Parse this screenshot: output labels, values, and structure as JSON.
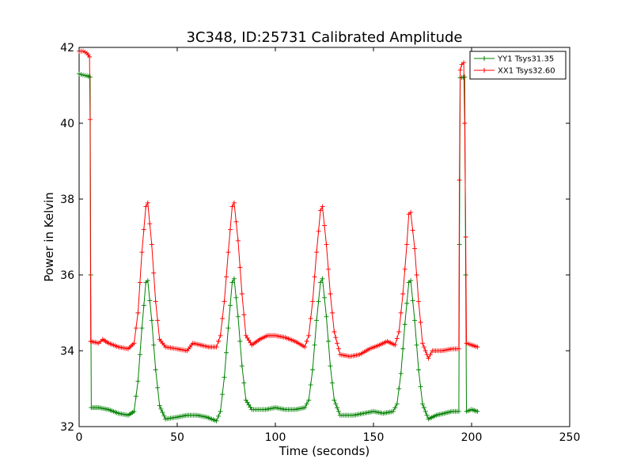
{
  "chart_data": {
    "type": "line",
    "title": "3C348, ID:25731 Calibrated Amplitude",
    "xlabel": "Time (seconds)",
    "ylabel": "Power in Kelvin",
    "xlim": [
      0,
      250
    ],
    "ylim": [
      32,
      42
    ],
    "xticks": [
      "0",
      "50",
      "100",
      "150",
      "200",
      "250"
    ],
    "yticks": [
      "32",
      "34",
      "36",
      "38",
      "40",
      "42"
    ],
    "grid": false,
    "legend_position": "top-right",
    "marker": "plus",
    "series": [
      {
        "name": "YY1 Tsys31.35",
        "color": "#008000",
        "points": [
          [
            0,
            41.3
          ],
          [
            2,
            41.27
          ],
          [
            4,
            41.25
          ],
          [
            5.6,
            41.22
          ],
          [
            5.9,
            36.0
          ],
          [
            6.2,
            32.5
          ],
          [
            10,
            32.5
          ],
          [
            15,
            32.45
          ],
          [
            20,
            32.35
          ],
          [
            25,
            32.3
          ],
          [
            28,
            32.4
          ],
          [
            30,
            33.2
          ],
          [
            32,
            34.6
          ],
          [
            34,
            35.8
          ],
          [
            35,
            35.85
          ],
          [
            37,
            34.8
          ],
          [
            39,
            33.5
          ],
          [
            41,
            32.55
          ],
          [
            44,
            32.2
          ],
          [
            50,
            32.25
          ],
          [
            55,
            32.3
          ],
          [
            60,
            32.3
          ],
          [
            65,
            32.25
          ],
          [
            70,
            32.15
          ],
          [
            72,
            32.4
          ],
          [
            74,
            33.3
          ],
          [
            76,
            34.6
          ],
          [
            78,
            35.8
          ],
          [
            79,
            35.9
          ],
          [
            81,
            34.9
          ],
          [
            83,
            33.6
          ],
          [
            85,
            32.7
          ],
          [
            88,
            32.45
          ],
          [
            95,
            32.45
          ],
          [
            100,
            32.5
          ],
          [
            105,
            32.45
          ],
          [
            110,
            32.45
          ],
          [
            115,
            32.5
          ],
          [
            117,
            32.7
          ],
          [
            119,
            33.5
          ],
          [
            121,
            34.8
          ],
          [
            123,
            35.8
          ],
          [
            124,
            35.9
          ],
          [
            126,
            34.9
          ],
          [
            128,
            33.6
          ],
          [
            130,
            32.7
          ],
          [
            133,
            32.3
          ],
          [
            140,
            32.3
          ],
          [
            145,
            32.35
          ],
          [
            150,
            32.4
          ],
          [
            155,
            32.35
          ],
          [
            160,
            32.4
          ],
          [
            162,
            32.6
          ],
          [
            164,
            33.4
          ],
          [
            166,
            34.7
          ],
          [
            168,
            35.8
          ],
          [
            169,
            35.85
          ],
          [
            171,
            34.8
          ],
          [
            173,
            33.5
          ],
          [
            175,
            32.6
          ],
          [
            178,
            32.2
          ],
          [
            182,
            32.3
          ],
          [
            186,
            32.35
          ],
          [
            190,
            32.4
          ],
          [
            193.5,
            32.4
          ],
          [
            193.8,
            36.8
          ],
          [
            194.2,
            41.2
          ],
          [
            196.5,
            41.22
          ],
          [
            197,
            36.0
          ],
          [
            197.4,
            32.4
          ],
          [
            200,
            32.45
          ],
          [
            203,
            32.4
          ]
        ]
      },
      {
        "name": "XX1 Tsys32.60",
        "color": "#ff0000",
        "points": [
          [
            0,
            41.9
          ],
          [
            2,
            41.9
          ],
          [
            4,
            41.85
          ],
          [
            5.3,
            41.75
          ],
          [
            5.6,
            40.1
          ],
          [
            5.9,
            34.25
          ],
          [
            10,
            34.2
          ],
          [
            12,
            34.3
          ],
          [
            15,
            34.2
          ],
          [
            20,
            34.1
          ],
          [
            25,
            34.05
          ],
          [
            28,
            34.2
          ],
          [
            30,
            35.0
          ],
          [
            32,
            36.6
          ],
          [
            34,
            37.8
          ],
          [
            35,
            37.9
          ],
          [
            37,
            36.8
          ],
          [
            39,
            35.3
          ],
          [
            41,
            34.3
          ],
          [
            44,
            34.1
          ],
          [
            50,
            34.05
          ],
          [
            55,
            34.0
          ],
          [
            58,
            34.2
          ],
          [
            62,
            34.15
          ],
          [
            66,
            34.1
          ],
          [
            70,
            34.1
          ],
          [
            72,
            34.4
          ],
          [
            74,
            35.3
          ],
          [
            76,
            36.6
          ],
          [
            78,
            37.8
          ],
          [
            79,
            37.9
          ],
          [
            81,
            36.9
          ],
          [
            83,
            35.5
          ],
          [
            85,
            34.4
          ],
          [
            88,
            34.15
          ],
          [
            92,
            34.3
          ],
          [
            96,
            34.4
          ],
          [
            100,
            34.4
          ],
          [
            105,
            34.35
          ],
          [
            110,
            34.25
          ],
          [
            115,
            34.1
          ],
          [
            117,
            34.4
          ],
          [
            119,
            35.3
          ],
          [
            121,
            36.6
          ],
          [
            123,
            37.7
          ],
          [
            124,
            37.8
          ],
          [
            126,
            36.8
          ],
          [
            128,
            35.5
          ],
          [
            130,
            34.5
          ],
          [
            133,
            33.9
          ],
          [
            138,
            33.85
          ],
          [
            143,
            33.9
          ],
          [
            148,
            34.05
          ],
          [
            153,
            34.15
          ],
          [
            157,
            34.25
          ],
          [
            161,
            34.15
          ],
          [
            163,
            34.5
          ],
          [
            165,
            35.5
          ],
          [
            167,
            36.8
          ],
          [
            168,
            37.6
          ],
          [
            169,
            37.65
          ],
          [
            171,
            36.7
          ],
          [
            173,
            35.3
          ],
          [
            175,
            34.2
          ],
          [
            178,
            33.8
          ],
          [
            180,
            34.0
          ],
          [
            185,
            34.0
          ],
          [
            190,
            34.05
          ],
          [
            193.5,
            34.05
          ],
          [
            193.8,
            38.5
          ],
          [
            194.2,
            41.4
          ],
          [
            195,
            41.55
          ],
          [
            196,
            41.6
          ],
          [
            196.5,
            40.0
          ],
          [
            197,
            37.0
          ],
          [
            197.4,
            34.2
          ],
          [
            200,
            34.15
          ],
          [
            203,
            34.1
          ]
        ]
      }
    ]
  }
}
